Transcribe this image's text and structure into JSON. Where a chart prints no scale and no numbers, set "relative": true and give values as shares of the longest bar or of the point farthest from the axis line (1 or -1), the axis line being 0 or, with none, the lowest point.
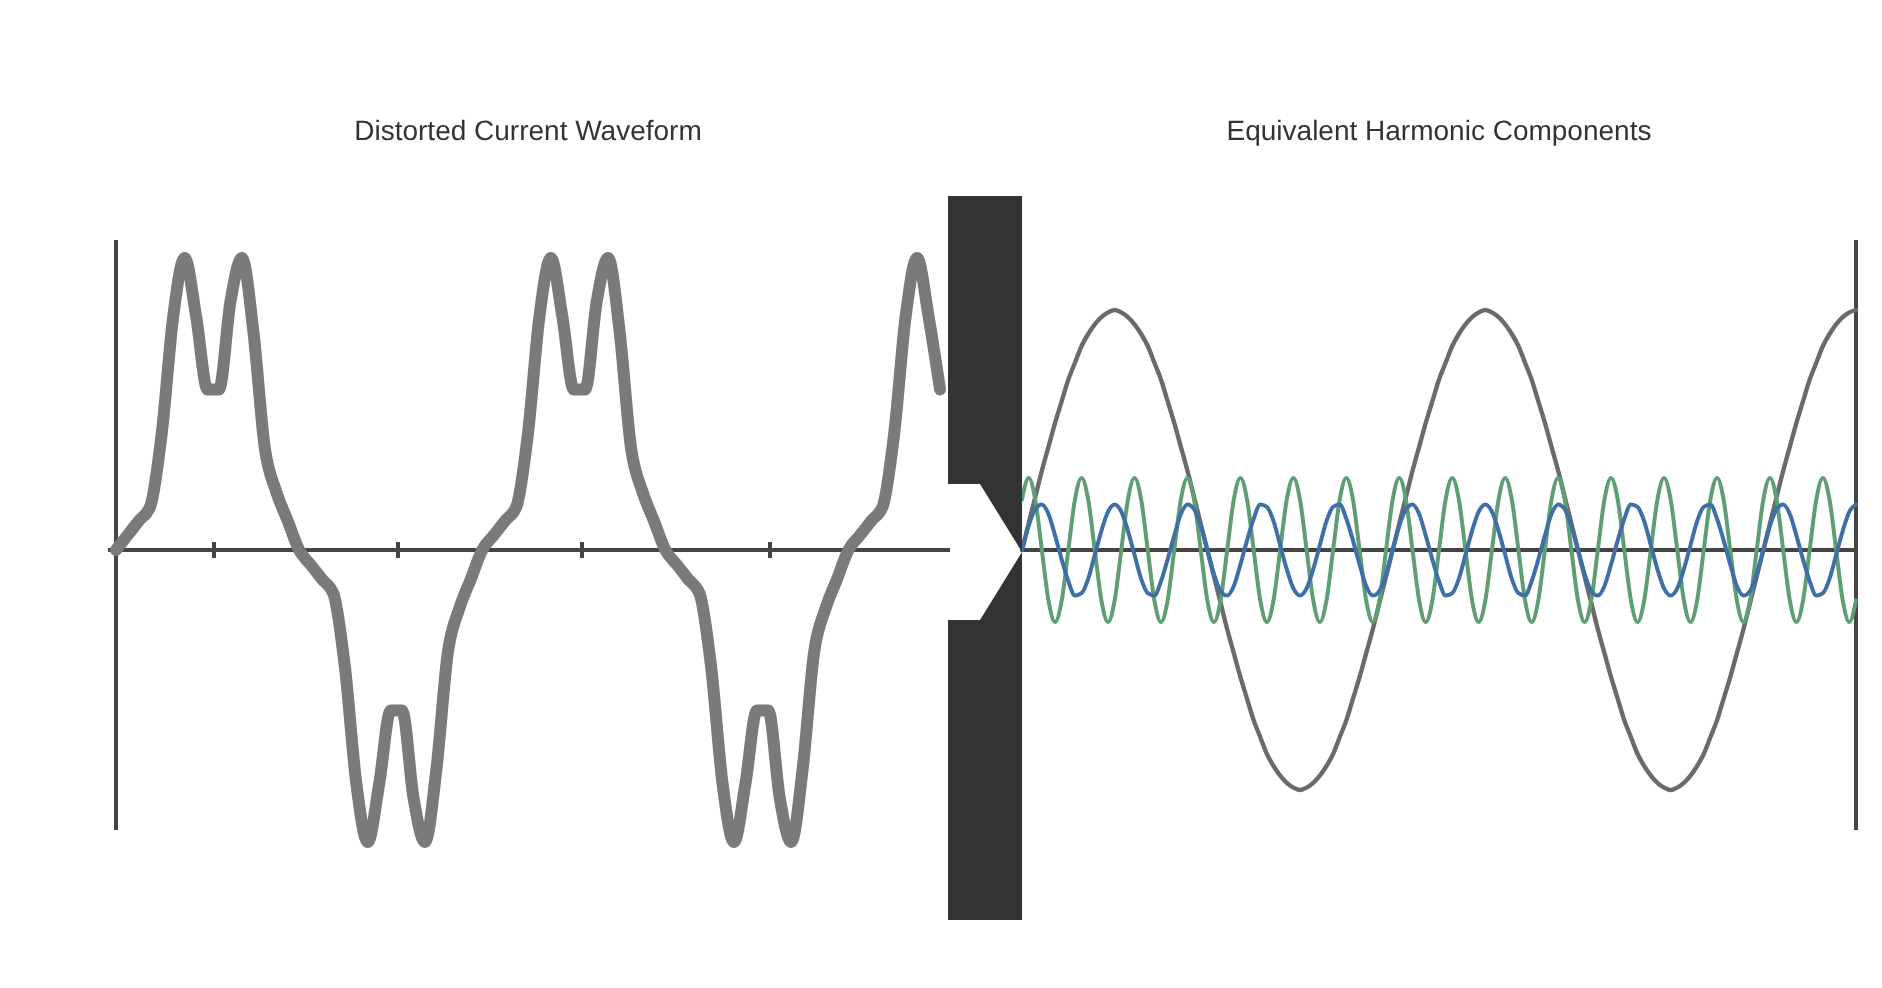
{
  "chart_data": [
    {
      "type": "line",
      "title": "Distorted Current Waveform",
      "relative": true,
      "categories": [
        null,
        null,
        null,
        null,
        null,
        null,
        null,
        null,
        null,
        null,
        null,
        null,
        null,
        null,
        null,
        null,
        null,
        null,
        null,
        null,
        null,
        null,
        null,
        null,
        null,
        null,
        null,
        null,
        null,
        null,
        null,
        null,
        null,
        null,
        null,
        null,
        null,
        null,
        null,
        null,
        null,
        null,
        null,
        null,
        null,
        null,
        null,
        null,
        null,
        null,
        null,
        null,
        null,
        null,
        null,
        null,
        null,
        null,
        null,
        null,
        null,
        null,
        null,
        null,
        null,
        null,
        null,
        null,
        null,
        null,
        null,
        null,
        null
      ],
      "series": [
        {
          "color": "#7a7a7a",
          "values": [
            0,
            0.05,
            0.1,
            0.15,
            0.4,
            0.8,
            1,
            0.8,
            0.55,
            0.55,
            0.85,
            1,
            0.75,
            0.35,
            0.2,
            0.1,
            0,
            -0.05,
            -0.1,
            -0.15,
            -0.4,
            -0.8,
            -1,
            -0.8,
            -0.55,
            -0.55,
            -0.85,
            -1,
            -0.75,
            -0.35,
            -0.2,
            -0.1,
            0,
            0.05,
            0.1,
            0.15,
            0.4,
            0.8,
            1,
            0.8,
            0.55,
            0.55,
            0.85,
            1,
            0.75,
            0.35,
            0.2,
            0.1,
            0,
            -0.05,
            -0.1,
            -0.15,
            -0.4,
            -0.8,
            -1,
            -0.8,
            -0.55,
            -0.55,
            -0.85,
            -1,
            -0.75,
            -0.35,
            -0.2,
            -0.1,
            0,
            0.05,
            0.1,
            0.15,
            0.4,
            0.8,
            1,
            0.8,
            0.55
          ]
        }
      ]
    },
    {
      "type": "line",
      "title": "Equivalent Harmonic Components",
      "relative": true,
      "categories": [
        null,
        null,
        null,
        null,
        null,
        null,
        null,
        null,
        null,
        null,
        null,
        null,
        null,
        null,
        null,
        null,
        null,
        null,
        null,
        null,
        null,
        null,
        null,
        null,
        null,
        null,
        null,
        null,
        null,
        null,
        null,
        null,
        null,
        null,
        null,
        null,
        null,
        null,
        null,
        null,
        null,
        null,
        null,
        null,
        null,
        null,
        null,
        null,
        null,
        null,
        null,
        null,
        null,
        null,
        null,
        null,
        null,
        null,
        null,
        null,
        null,
        null,
        null,
        null,
        null,
        null,
        null,
        null,
        null,
        null,
        null,
        null,
        null,
        null,
        null,
        null,
        null,
        null,
        null,
        null,
        null,
        null,
        null,
        null,
        null,
        null,
        null,
        null,
        null,
        null,
        null,
        null,
        null,
        null,
        null,
        null,
        null,
        null,
        null,
        null,
        null,
        null,
        null,
        null,
        null,
        null,
        null,
        null,
        null,
        null,
        null,
        null,
        null,
        null,
        null,
        null,
        null,
        null,
        null,
        null,
        null,
        null,
        null,
        null,
        null,
        null,
        null
      ],
      "series": [
        {
          "color": "#6a6a6a",
          "values": [
            0,
            0.11,
            0.22,
            0.33,
            0.43,
            0.53,
            0.62,
            0.71,
            0.78,
            0.85,
            0.9,
            0.94,
            0.97,
            0.99,
            1,
            0.99,
            0.97,
            0.94,
            0.9,
            0.85,
            0.78,
            0.71,
            0.62,
            0.53,
            0.43,
            0.33,
            0.22,
            0.11,
            0,
            -0.11,
            -0.22,
            -0.33,
            -0.43,
            -0.53,
            -0.62,
            -0.71,
            -0.78,
            -0.85,
            -0.9,
            -0.94,
            -0.97,
            -0.99,
            -1,
            -0.99,
            -0.97,
            -0.94,
            -0.9,
            -0.85,
            -0.78,
            -0.71,
            -0.62,
            -0.53,
            -0.43,
            -0.33,
            -0.22,
            -0.11,
            0,
            0.11,
            0.22,
            0.33,
            0.43,
            0.53,
            0.62,
            0.71,
            0.78,
            0.85,
            0.9,
            0.94,
            0.97,
            0.99,
            1,
            0.99,
            0.97,
            0.94,
            0.9,
            0.85,
            0.78,
            0.71,
            0.62,
            0.53,
            0.43,
            0.33,
            0.22,
            0.11,
            0,
            -0.11,
            -0.22,
            -0.33,
            -0.43,
            -0.53,
            -0.62,
            -0.71,
            -0.78,
            -0.85,
            -0.9,
            -0.94,
            -0.97,
            -0.99,
            -1,
            -0.99,
            -0.97,
            -0.94,
            -0.9,
            -0.85,
            -0.78,
            -0.71,
            -0.62,
            -0.53,
            -0.43,
            -0.33,
            -0.22,
            -0.11,
            0,
            0.11,
            0.22,
            0.33,
            0.43,
            0.53,
            0.62,
            0.71,
            0.78,
            0.85,
            0.9,
            0.94,
            0.97,
            0.99,
            1
          ]
        },
        {
          "color": "#5e9e72",
          "values": [
            0.21,
            0.3,
            0.21,
            0,
            -0.21,
            -0.3,
            -0.21,
            0,
            0.21,
            0.3,
            0.21,
            0,
            -0.21,
            -0.3,
            -0.21,
            0,
            0.21,
            0.3,
            0.21,
            0,
            -0.21,
            -0.3,
            -0.21,
            0,
            0.21,
            0.3,
            0.21,
            0,
            -0.21,
            -0.3,
            -0.21,
            0,
            0.21,
            0.3,
            0.21,
            0,
            -0.21,
            -0.3,
            -0.21,
            0,
            0.21,
            0.3,
            0.21,
            0,
            -0.21,
            -0.3,
            -0.21,
            0,
            0.21,
            0.3,
            0.21,
            0,
            -0.21,
            -0.3,
            -0.21,
            0,
            0.21,
            0.3,
            0.21,
            0,
            -0.21,
            -0.3,
            -0.21,
            0,
            0.21,
            0.3,
            0.21,
            0,
            -0.21,
            -0.3,
            -0.21,
            0,
            0.21,
            0.3,
            0.21,
            0,
            -0.21,
            -0.3,
            -0.21,
            0,
            0.21,
            0.3,
            0.21,
            0,
            -0.21,
            -0.3,
            -0.21,
            0,
            0.21,
            0.3,
            0.21,
            0,
            -0.21,
            -0.3,
            -0.21,
            0,
            0.21,
            0.3,
            0.21,
            0,
            -0.21,
            -0.3,
            -0.21,
            0,
            0.21,
            0.3,
            0.21,
            0,
            -0.21,
            -0.3,
            -0.21,
            0,
            0.21,
            0.3,
            0.21,
            0,
            -0.21,
            -0.3,
            -0.21,
            0,
            0.21,
            0.3,
            0.21,
            0,
            -0.21,
            -0.3,
            -0.21
          ]
        },
        {
          "color": "#3e6fa6",
          "values": [
            0,
            0.1,
            0.17,
            0.19,
            0.15,
            0.06,
            -0.04,
            -0.13,
            -0.19,
            -0.18,
            -0.12,
            -0.02,
            0.08,
            0.16,
            0.19,
            0.16,
            0.08,
            -0.02,
            -0.12,
            -0.18,
            -0.19,
            -0.13,
            -0.04,
            0.06,
            0.15,
            0.19,
            0.17,
            0.1,
            0,
            -0.1,
            -0.17,
            -0.19,
            -0.15,
            -0.06,
            0.04,
            0.13,
            0.19,
            0.18,
            0.12,
            0.02,
            -0.08,
            -0.16,
            -0.19,
            -0.16,
            -0.08,
            0.02,
            0.12,
            0.18,
            0.19,
            0.13,
            0.04,
            -0.06,
            -0.15,
            -0.19,
            -0.17,
            -0.1,
            0,
            0.1,
            0.17,
            0.19,
            0.15,
            0.06,
            -0.04,
            -0.13,
            -0.19,
            -0.18,
            -0.12,
            -0.02,
            0.08,
            0.16,
            0.19,
            0.16,
            0.08,
            -0.02,
            -0.12,
            -0.18,
            -0.19,
            -0.13,
            -0.04,
            0.06,
            0.15,
            0.19,
            0.17,
            0.1,
            0,
            -0.1,
            -0.17,
            -0.19,
            -0.15,
            -0.06,
            0.04,
            0.13,
            0.19,
            0.18,
            0.12,
            0.02,
            -0.08,
            -0.16,
            -0.19,
            -0.16,
            -0.08,
            0.02,
            0.12,
            0.18,
            0.19,
            0.13,
            0.04,
            -0.06,
            -0.15,
            -0.19,
            -0.17,
            -0.1,
            0,
            0.1,
            0.17,
            0.19,
            0.15,
            0.06,
            -0.04,
            -0.13,
            -0.19,
            -0.18,
            -0.12,
            -0.02,
            0.08,
            0.16,
            0.19
          ]
        }
      ]
    }
  ]
}
